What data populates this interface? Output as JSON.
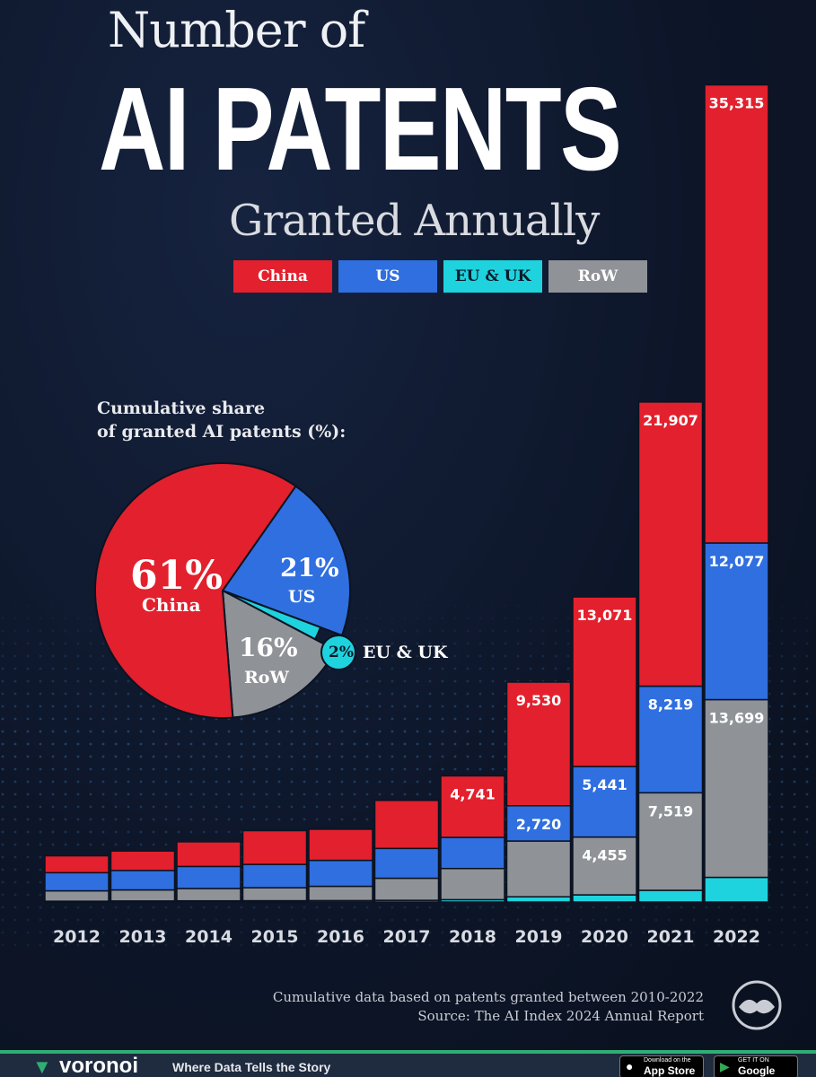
{
  "header": {
    "title_line1": "Number of",
    "title_line2": "AI PATENTS",
    "title_line3": "Granted Annually"
  },
  "legend": [
    {
      "label": "China",
      "color": "#e3202d"
    },
    {
      "label": "US",
      "color": "#2f6fe0"
    },
    {
      "label": "EU & UK",
      "color": "#1ed3de"
    },
    {
      "label": "RoW",
      "color": "#8f9297"
    }
  ],
  "pie": {
    "subtitle_line1": "Cumulative share",
    "subtitle_line2": "of granted AI patents (%):",
    "slices": [
      {
        "name": "China",
        "pct_label": "61%",
        "value": 61,
        "color": "#e3202d"
      },
      {
        "name": "US",
        "pct_label": "21%",
        "value": 21,
        "color": "#2f6fe0"
      },
      {
        "name": "EU & UK",
        "pct_label": "2%",
        "value": 2,
        "color": "#1ed3de"
      },
      {
        "name": "RoW",
        "pct_label": "16%",
        "value": 16,
        "color": "#8f9297"
      }
    ]
  },
  "chart_data": {
    "type": "bar",
    "stacked": true,
    "title": "Number of AI PATENTS Granted Annually",
    "categories": [
      "2012",
      "2013",
      "2014",
      "2015",
      "2016",
      "2017",
      "2018",
      "2019",
      "2020",
      "2021",
      "2022"
    ],
    "series": [
      {
        "name": "EU & UK",
        "color": "#1ed3de",
        "values": [
          60,
          80,
          90,
          100,
          110,
          130,
          180,
          400,
          550,
          900,
          1900
        ],
        "labels": [
          "",
          "",
          "",
          "",
          "",
          "",
          "",
          "",
          "",
          "",
          ""
        ]
      },
      {
        "name": "RoW",
        "color": "#8f9297",
        "values": [
          800,
          850,
          950,
          1000,
          1100,
          1700,
          2400,
          4300,
          4455,
          7519,
          13699
        ],
        "labels": [
          "",
          "",
          "",
          "",
          "",
          "",
          "",
          "",
          "4,455",
          "7,519",
          "13,699"
        ]
      },
      {
        "name": "US",
        "color": "#2f6fe0",
        "values": [
          1400,
          1500,
          1700,
          1800,
          2000,
          2300,
          2400,
          2720,
          5441,
          8219,
          12077
        ],
        "labels": [
          "",
          "",
          "",
          "",
          "",
          "",
          "",
          "2,720",
          "5,441",
          "8,219",
          "12,077"
        ]
      },
      {
        "name": "China",
        "color": "#e3202d",
        "values": [
          1300,
          1500,
          1900,
          2600,
          2400,
          3700,
          4741,
          9530,
          13071,
          21907,
          35315
        ],
        "labels": [
          "",
          "",
          "",
          "",
          "",
          "",
          "4,741",
          "9,530",
          "13,071",
          "21,907",
          "35,315"
        ]
      }
    ],
    "ylim": [
      0,
      64000
    ],
    "legend_position": "top"
  },
  "footer": {
    "note": "Cumulative data based on patents granted between 2010-2022",
    "source": "Source: The AI Index 2024 Annual Report"
  },
  "brand": {
    "name": "voronoi",
    "tagline": "Where Data Tells the Story",
    "app_store_small": "Download on the",
    "app_store": "App Store",
    "google_play_small": "GET IT ON",
    "google_play": "Google Play"
  }
}
